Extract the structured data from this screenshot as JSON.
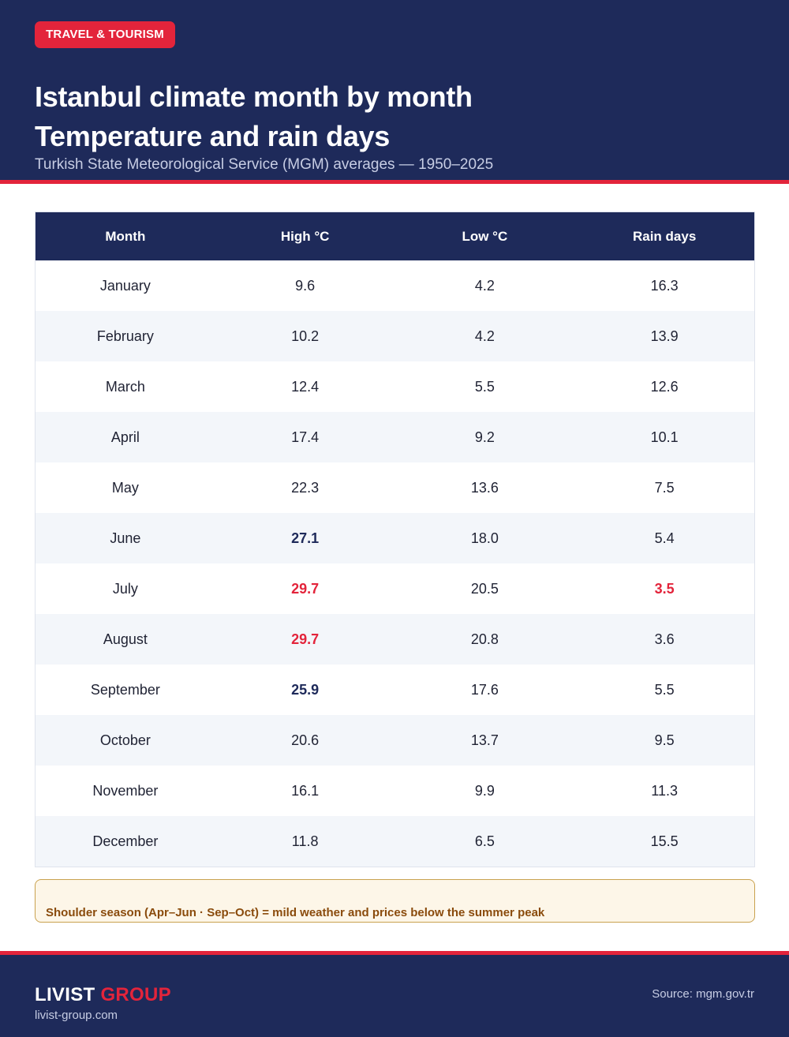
{
  "header": {
    "tag": "TRAVEL & TOURISM",
    "title_line1": "Istanbul climate month by month",
    "title_line2": "Temperature and rain days",
    "subtitle": "Turkish State Meteorological Service (MGM) averages — 1950–2025"
  },
  "table": {
    "columns": [
      "Month",
      "High °C",
      "Low °C",
      "Rain days"
    ],
    "rows": [
      {
        "month": "January",
        "high": "9.6",
        "low": "4.2",
        "rain": "16.3"
      },
      {
        "month": "February",
        "high": "10.2",
        "low": "4.2",
        "rain": "13.9"
      },
      {
        "month": "March",
        "high": "12.4",
        "low": "5.5",
        "rain": "12.6"
      },
      {
        "month": "April",
        "high": "17.4",
        "low": "9.2",
        "rain": "10.1"
      },
      {
        "month": "May",
        "high": "22.3",
        "low": "13.6",
        "rain": "7.5"
      },
      {
        "month": "June",
        "high": "27.1",
        "low": "18.0",
        "rain": "5.4"
      },
      {
        "month": "July",
        "high": "29.7",
        "low": "20.5",
        "rain": "3.5"
      },
      {
        "month": "August",
        "high": "29.7",
        "low": "20.8",
        "rain": "3.6"
      },
      {
        "month": "September",
        "high": "25.9",
        "low": "17.6",
        "rain": "5.5"
      },
      {
        "month": "October",
        "high": "20.6",
        "low": "13.7",
        "rain": "9.5"
      },
      {
        "month": "November",
        "high": "16.1",
        "low": "9.9",
        "rain": "11.3"
      },
      {
        "month": "December",
        "high": "11.8",
        "low": "6.5",
        "rain": "15.5"
      }
    ]
  },
  "note": "Shoulder season (Apr–Jun · Sep–Oct) = mild weather and prices below the summer peak",
  "footer": {
    "brand_main": "LIVIST",
    "brand_accent": "GROUP",
    "url": "livist-group.com",
    "source": "Source: mgm.gov.tr"
  },
  "colors": {
    "navy": "#1e2a5a",
    "accent_red": "#e3243b",
    "row_alt": "#f3f6fa",
    "note_bg": "#fdf6e8",
    "note_text": "#8a4b0c"
  }
}
